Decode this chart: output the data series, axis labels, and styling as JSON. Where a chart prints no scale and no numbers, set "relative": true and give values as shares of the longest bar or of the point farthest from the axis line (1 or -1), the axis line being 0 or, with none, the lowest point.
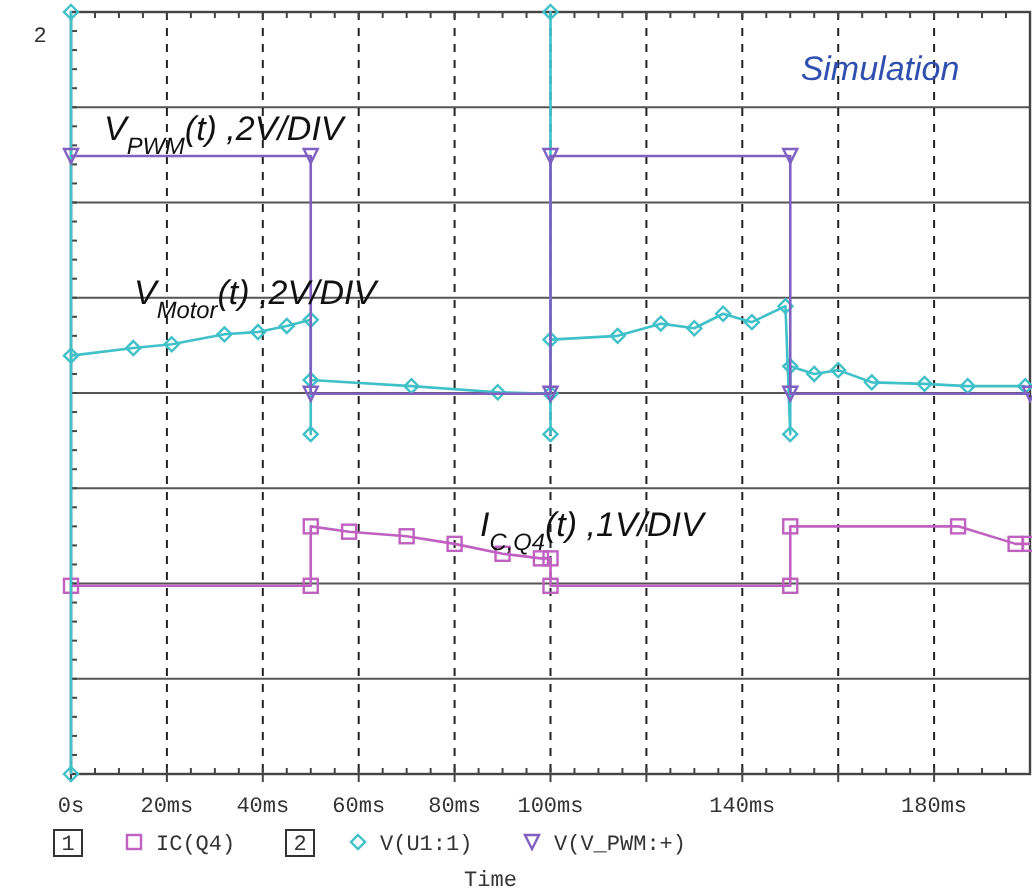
{
  "chart_data": {
    "type": "line",
    "relative": true,
    "xlabel": "Time",
    "xlim": [
      0,
      200
    ],
    "xticks": [
      {
        "value": 0,
        "label": "0s"
      },
      {
        "value": 20,
        "label": "20ms"
      },
      {
        "value": 40,
        "label": "40ms"
      },
      {
        "value": 60,
        "label": "60ms"
      },
      {
        "value": 80,
        "label": "80ms"
      },
      {
        "value": 100,
        "label": "100ms"
      },
      {
        "value": 120,
        "label": null
      },
      {
        "value": 140,
        "label": "140ms"
      },
      {
        "value": 160,
        "label": null
      },
      {
        "value": 180,
        "label": "180ms"
      }
    ],
    "grid": true,
    "legend": "bottom",
    "line_style": "solid",
    "series": [
      {
        "name": "IC(Q4)",
        "color": "#c060c0",
        "marker": "square",
        "x": [
          0,
          50,
          50,
          58,
          70,
          80,
          90,
          98,
          100,
          100,
          150,
          150,
          185,
          197,
          200
        ],
        "values": [
          0.247,
          0.247,
          0.325,
          0.318,
          0.312,
          0.302,
          0.289,
          0.283,
          0.283,
          0.247,
          0.247,
          0.325,
          0.325,
          0.302,
          0.302
        ]
      },
      {
        "name": "V(U1:1)",
        "color": "#40c0c8",
        "marker": "diamond",
        "x": [
          0,
          0,
          0,
          13,
          21,
          32,
          39,
          45,
          50,
          50,
          50,
          71,
          89,
          100,
          100,
          100,
          100,
          114,
          123,
          130,
          136,
          142,
          149,
          150,
          150,
          155,
          160,
          167,
          178,
          187,
          199
        ],
        "values": [
          0,
          1,
          0.549,
          0.559,
          0.564,
          0.577,
          0.58,
          0.588,
          0.596,
          0.446,
          0.517,
          0.509,
          0.501,
          0.499,
          1,
          0.446,
          0.57,
          0.575,
          0.591,
          0.585,
          0.604,
          0.593,
          0.614,
          0.446,
          0.535,
          0.525,
          0.53,
          0.514,
          0.512,
          0.509,
          0.509
        ]
      },
      {
        "name": "V(V_PWM:+)",
        "color": "#8060c0",
        "marker": "triangle",
        "x": [
          0,
          50,
          50,
          100,
          100,
          150,
          150,
          200
        ],
        "values": [
          0.811,
          0.811,
          0.499,
          0.499,
          0.811,
          0.811,
          0.499,
          0.499
        ]
      }
    ],
    "annotations": [
      "2",
      "Simulation",
      "1",
      "2",
      "V$_{PWM}$(t) ,2V/DIV",
      "V$_{Motor}$(t) ,2V/DIV",
      "I$_{C,Q4}$(t) ,1V/DIV"
    ]
  }
}
